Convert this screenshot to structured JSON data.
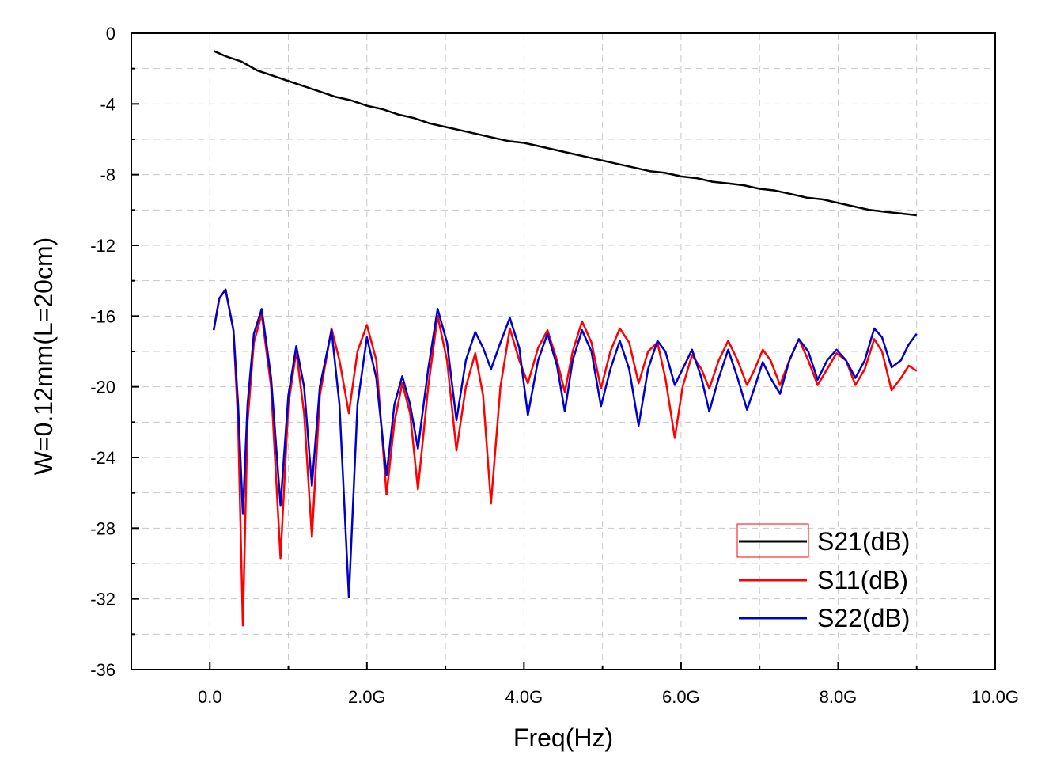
{
  "chart_data": {
    "type": "line",
    "xlabel": "Freq(Hz)",
    "ylabel": "W=0.12mm(L=20cm)",
    "xlim": [
      -1.0,
      10.0
    ],
    "ylim": [
      -36,
      0
    ],
    "x_unit": "GHz",
    "grid": true,
    "legend_position": "bottom-right",
    "x_ticks": [
      {
        "value": 0.0,
        "label": "0.0"
      },
      {
        "value": 2.0,
        "label": "2.0G"
      },
      {
        "value": 4.0,
        "label": "4.0G"
      },
      {
        "value": 6.0,
        "label": "6.0G"
      },
      {
        "value": 8.0,
        "label": "8.0G"
      },
      {
        "value": 10.0,
        "label": "10.0G"
      }
    ],
    "y_ticks": [
      {
        "value": 0,
        "label": "0"
      },
      {
        "value": -4,
        "label": "-4"
      },
      {
        "value": -8,
        "label": "-8"
      },
      {
        "value": -12,
        "label": "-12"
      },
      {
        "value": -16,
        "label": "-16"
      },
      {
        "value": -20,
        "label": "-20"
      },
      {
        "value": -24,
        "label": "-24"
      },
      {
        "value": -28,
        "label": "-28"
      },
      {
        "value": -32,
        "label": "-32"
      },
      {
        "value": -36,
        "label": "-36"
      }
    ],
    "series": [
      {
        "name": "S21(dB)",
        "color": "#000000",
        "x": [
          0.05,
          0.2,
          0.4,
          0.6,
          0.8,
          1.0,
          1.2,
          1.4,
          1.6,
          1.8,
          2.0,
          2.2,
          2.4,
          2.6,
          2.8,
          3.0,
          3.2,
          3.4,
          3.6,
          3.8,
          4.0,
          4.2,
          4.4,
          4.6,
          4.8,
          5.0,
          5.2,
          5.4,
          5.6,
          5.8,
          6.0,
          6.2,
          6.4,
          6.6,
          6.8,
          7.0,
          7.2,
          7.4,
          7.6,
          7.8,
          8.0,
          8.2,
          8.4,
          8.6,
          8.8,
          9.0
        ],
        "y": [
          -1.0,
          -1.3,
          -1.6,
          -2.1,
          -2.4,
          -2.7,
          -3.0,
          -3.3,
          -3.6,
          -3.8,
          -4.1,
          -4.3,
          -4.6,
          -4.8,
          -5.1,
          -5.3,
          -5.5,
          -5.7,
          -5.9,
          -6.1,
          -6.2,
          -6.4,
          -6.6,
          -6.8,
          -7.0,
          -7.2,
          -7.4,
          -7.6,
          -7.8,
          -7.9,
          -8.1,
          -8.2,
          -8.4,
          -8.5,
          -8.6,
          -8.8,
          -8.9,
          -9.1,
          -9.3,
          -9.4,
          -9.6,
          -9.8,
          -10.0,
          -10.1,
          -10.2,
          -10.3
        ]
      },
      {
        "name": "S11(dB)",
        "color": "#ff0000",
        "x": [
          0.05,
          0.12,
          0.2,
          0.3,
          0.36,
          0.42,
          0.48,
          0.56,
          0.66,
          0.78,
          0.9,
          1.0,
          1.1,
          1.2,
          1.3,
          1.4,
          1.55,
          1.65,
          1.77,
          1.88,
          2.0,
          2.12,
          2.25,
          2.35,
          2.45,
          2.55,
          2.65,
          2.78,
          2.9,
          3.02,
          3.14,
          3.26,
          3.38,
          3.48,
          3.58,
          3.7,
          3.82,
          3.94,
          4.05,
          4.18,
          4.3,
          4.42,
          4.52,
          4.62,
          4.74,
          4.86,
          4.98,
          5.1,
          5.22,
          5.34,
          5.46,
          5.58,
          5.7,
          5.8,
          5.92,
          6.02,
          6.14,
          6.26,
          6.36,
          6.48,
          6.6,
          6.72,
          6.84,
          6.94,
          7.04,
          7.14,
          7.26,
          7.38,
          7.5,
          7.62,
          7.74,
          7.86,
          7.98,
          8.1,
          8.22,
          8.34,
          8.46,
          8.56,
          8.68,
          8.8,
          8.9,
          9.0
        ],
        "y": [
          -16.8,
          -15.0,
          -14.5,
          -16.8,
          -22.0,
          -33.5,
          -22.0,
          -17.5,
          -15.9,
          -20.0,
          -29.7,
          -21.0,
          -18.0,
          -21.5,
          -28.5,
          -20.5,
          -16.7,
          -18.5,
          -21.5,
          -18.0,
          -16.5,
          -18.5,
          -26.1,
          -22.0,
          -19.8,
          -21.5,
          -25.8,
          -20.0,
          -16.0,
          -18.5,
          -23.6,
          -20.0,
          -18.1,
          -20.5,
          -26.6,
          -20.0,
          -16.7,
          -18.5,
          -19.8,
          -17.8,
          -16.8,
          -18.5,
          -20.3,
          -18.0,
          -16.3,
          -17.5,
          -20.1,
          -18.0,
          -16.7,
          -17.5,
          -19.8,
          -18.0,
          -17.5,
          -19.5,
          -22.9,
          -20.0,
          -18.2,
          -19.0,
          -20.1,
          -18.5,
          -17.4,
          -18.5,
          -19.9,
          -19.0,
          -17.9,
          -18.5,
          -19.9,
          -18.5,
          -17.3,
          -18.5,
          -19.9,
          -19.0,
          -18.1,
          -18.5,
          -19.9,
          -19.0,
          -17.3,
          -18.0,
          -20.2,
          -19.5,
          -18.8,
          -19.1
        ]
      },
      {
        "name": "S22(dB)",
        "color": "#0000cc",
        "x": [
          0.05,
          0.12,
          0.2,
          0.3,
          0.36,
          0.42,
          0.48,
          0.56,
          0.66,
          0.78,
          0.9,
          1.0,
          1.1,
          1.2,
          1.3,
          1.4,
          1.55,
          1.65,
          1.77,
          1.88,
          2.0,
          2.12,
          2.25,
          2.35,
          2.45,
          2.55,
          2.65,
          2.78,
          2.9,
          3.02,
          3.14,
          3.26,
          3.38,
          3.48,
          3.58,
          3.7,
          3.82,
          3.94,
          4.05,
          4.18,
          4.3,
          4.42,
          4.52,
          4.62,
          4.74,
          4.86,
          4.98,
          5.1,
          5.22,
          5.34,
          5.46,
          5.58,
          5.7,
          5.8,
          5.92,
          6.02,
          6.14,
          6.26,
          6.36,
          6.48,
          6.6,
          6.72,
          6.84,
          6.94,
          7.04,
          7.14,
          7.26,
          7.38,
          7.5,
          7.62,
          7.74,
          7.86,
          7.98,
          8.1,
          8.22,
          8.34,
          8.46,
          8.56,
          8.68,
          8.8,
          8.9,
          9.0
        ],
        "y": [
          -16.8,
          -15.0,
          -14.5,
          -16.8,
          -21.0,
          -27.2,
          -21.0,
          -17.0,
          -15.6,
          -19.5,
          -26.7,
          -20.5,
          -17.7,
          -20.0,
          -25.6,
          -20.0,
          -16.8,
          -21.0,
          -31.9,
          -21.0,
          -17.2,
          -19.5,
          -25.0,
          -21.0,
          -19.4,
          -21.0,
          -23.5,
          -19.0,
          -15.6,
          -17.5,
          -21.9,
          -18.5,
          -16.9,
          -17.8,
          -19.0,
          -17.5,
          -16.1,
          -17.8,
          -21.6,
          -18.5,
          -17.0,
          -18.8,
          -21.4,
          -18.5,
          -16.8,
          -18.0,
          -21.1,
          -19.0,
          -17.4,
          -19.0,
          -22.2,
          -19.0,
          -17.4,
          -18.0,
          -19.9,
          -19.0,
          -17.9,
          -19.5,
          -21.4,
          -19.5,
          -17.9,
          -19.5,
          -21.3,
          -20.0,
          -18.6,
          -19.5,
          -20.4,
          -18.5,
          -17.3,
          -18.0,
          -19.6,
          -18.5,
          -17.9,
          -18.5,
          -19.5,
          -18.5,
          -16.7,
          -17.2,
          -18.9,
          -18.5,
          -17.6,
          -17.0
        ]
      }
    ]
  }
}
